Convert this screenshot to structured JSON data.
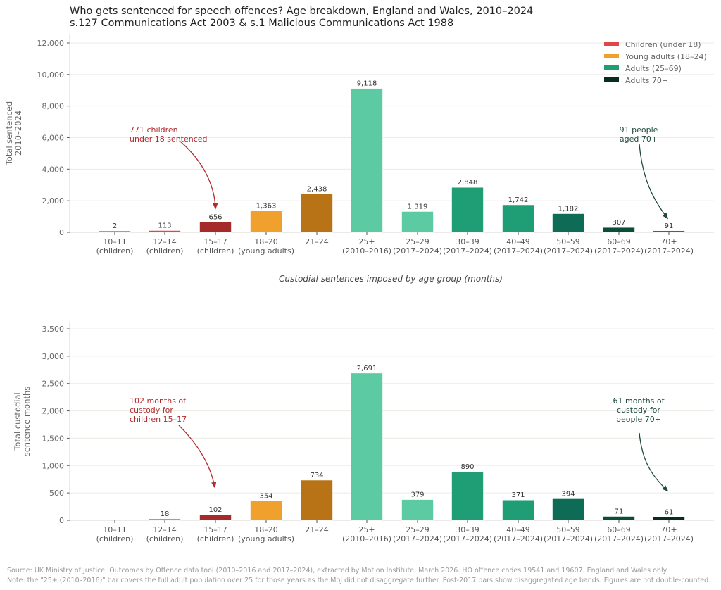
{
  "header": {
    "title_line1": "Who gets sentenced for speech offences? Age breakdown, England and Wales, 2010–2024",
    "title_line2": "s.127 Communications Act 2003 & s.1 Malicious Communications Act 1988"
  },
  "colors": {
    "children_light": "#e04848",
    "children_dark": "#a52a2a",
    "young_light": "#f0a02c",
    "young_dark": "#b87316",
    "adult_light": "#5ccaa3",
    "adult_mid": "#1f9e76",
    "adult_dark": "#0e6b55",
    "adult_darker": "#0a4d3a",
    "old": "#0b2a20",
    "annotation_red": "#b22b2b",
    "annotation_green": "#1e4a3e"
  },
  "legend": {
    "placement": "top-right",
    "items": [
      {
        "label": "Children (under 18)",
        "color": "#e04848"
      },
      {
        "label": "Young adults (18–24)",
        "color": "#f0a02c"
      },
      {
        "label": "Adults (25–69)",
        "color": "#1f9e76"
      },
      {
        "label": "Adults 70+",
        "color": "#0b2a20"
      }
    ]
  },
  "middle_caption": "Custodial sentences imposed by age group (months)",
  "chart_data": [
    {
      "type": "bar",
      "title": "",
      "xlabel": "",
      "ylabel": "Total sentenced\n2010–2024",
      "ylabel_lines": [
        "Total sentenced",
        "2010–2024"
      ],
      "ylim": [
        0,
        12500
      ],
      "yticks": [
        0,
        2000,
        4000,
        6000,
        8000,
        10000,
        12000
      ],
      "ytick_labels": [
        "0",
        "2,000",
        "4,000",
        "6,000",
        "8,000",
        "10,000",
        "12,000"
      ],
      "grid": true,
      "categories": [
        [
          "10–11",
          "(children)"
        ],
        [
          "12–14",
          "(children)"
        ],
        [
          "15–17",
          "(children)"
        ],
        [
          "18–20",
          "(young adults)"
        ],
        [
          "21–24",
          ""
        ],
        [
          "25+",
          "(2010–2016)"
        ],
        [
          "25–29",
          "(2017–2024)"
        ],
        [
          "30–39",
          "(2017–2024)"
        ],
        [
          "40–49",
          "(2017–2024)"
        ],
        [
          "50–59",
          "(2017–2024)"
        ],
        [
          "60–69",
          "(2017–2024)"
        ],
        [
          "70+",
          "(2017–2024)"
        ]
      ],
      "values": [
        2,
        113,
        656,
        1363,
        2438,
        9118,
        1319,
        2848,
        1742,
        1182,
        307,
        91
      ],
      "value_labels": [
        "2",
        "113",
        "656",
        "1,363",
        "2,438",
        "9,118",
        "1,319",
        "2,848",
        "1,742",
        "1,182",
        "307",
        "91"
      ],
      "bar_colors": [
        "#e04848",
        "#e04848",
        "#a52a2a",
        "#f0a02c",
        "#b87316",
        "#5ccaa3",
        "#5ccaa3",
        "#1f9e76",
        "#1f9e76",
        "#0e6b55",
        "#0a4d3a",
        "#0b2a20"
      ],
      "annotations": [
        {
          "lines": [
            "771 children",
            "under 18 sentenced"
          ],
          "color": "#b22b2b",
          "target_category": 2,
          "align": "left"
        },
        {
          "lines": [
            "91 people",
            "aged 70+"
          ],
          "color": "#1e4a3e",
          "target_category": 11,
          "align": "center"
        }
      ]
    },
    {
      "type": "bar",
      "title": "",
      "xlabel": "",
      "ylabel": "Total custodial\nsentence months",
      "ylabel_lines": [
        "Total custodial",
        "sentence months"
      ],
      "ylim": [
        0,
        3600
      ],
      "yticks": [
        0,
        500,
        1000,
        1500,
        2000,
        2500,
        3000,
        3500
      ],
      "ytick_labels": [
        "0",
        "500",
        "1,000",
        "1,500",
        "2,000",
        "2,500",
        "3,000",
        "3,500"
      ],
      "grid": true,
      "categories": [
        [
          "10–11",
          "(children)"
        ],
        [
          "12–14",
          "(children)"
        ],
        [
          "15–17",
          "(children)"
        ],
        [
          "18–20",
          "(young adults)"
        ],
        [
          "21–24",
          ""
        ],
        [
          "25+",
          "(2010–2016)"
        ],
        [
          "25–29",
          "(2017–2024)"
        ],
        [
          "30–39",
          "(2017–2024)"
        ],
        [
          "40–49",
          "(2017–2024)"
        ],
        [
          "50–59",
          "(2017–2024)"
        ],
        [
          "60–69",
          "(2017–2024)"
        ],
        [
          "70+",
          "(2017–2024)"
        ]
      ],
      "values": [
        0,
        18,
        102,
        354,
        734,
        2691,
        379,
        890,
        371,
        394,
        71,
        61
      ],
      "value_labels": [
        "",
        "18",
        "102",
        "354",
        "734",
        "2,691",
        "379",
        "890",
        "371",
        "394",
        "71",
        "61"
      ],
      "bar_colors": [
        "#e04848",
        "#e04848",
        "#a52a2a",
        "#f0a02c",
        "#b87316",
        "#5ccaa3",
        "#5ccaa3",
        "#1f9e76",
        "#1f9e76",
        "#0e6b55",
        "#0a4d3a",
        "#0b2a20"
      ],
      "annotations": [
        {
          "lines": [
            "102 months of",
            "custody for",
            "children 15–17"
          ],
          "color": "#b22b2b",
          "target_category": 2,
          "align": "left"
        },
        {
          "lines": [
            "61 months of",
            "custody for",
            "people 70+"
          ],
          "color": "#1e4a3e",
          "target_category": 11,
          "align": "center"
        }
      ]
    }
  ],
  "footer": {
    "source": "Source: UK Ministry of Justice, Outcomes by Offence data tool (2010–2016 and 2017–2024), extracted by Motion Institute, March 2026. HO offence codes 19541 and 19607. England and Wales only.",
    "note": "Note: the \"25+ (2010–2016)\" bar covers the full adult population over 25 for those years as the MoJ did not disaggregate further. Post-2017 bars show disaggregated age bands. Figures are not double-counted."
  }
}
